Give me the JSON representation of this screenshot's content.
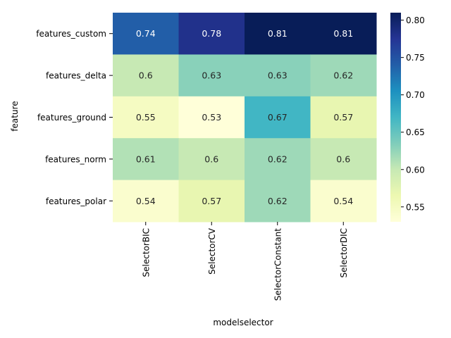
{
  "chart_data": {
    "type": "heatmap",
    "title": "",
    "xlabel": "modelselector",
    "ylabel": "feature",
    "columns": [
      "SelectorBIC",
      "SelectorCV",
      "SelectorConstant",
      "SelectorDIC"
    ],
    "rows": [
      "features_custom",
      "features_delta",
      "features_ground",
      "features_norm",
      "features_polar"
    ],
    "values": [
      [
        0.74,
        0.78,
        0.81,
        0.81
      ],
      [
        0.6,
        0.63,
        0.63,
        0.62
      ],
      [
        0.55,
        0.53,
        0.67,
        0.57
      ],
      [
        0.61,
        0.6,
        0.62,
        0.6
      ],
      [
        0.54,
        0.57,
        0.62,
        0.54
      ]
    ],
    "colormap": "YlGnBu",
    "colormap_stops": [
      "#ffffd9",
      "#edf8b1",
      "#c7e9b4",
      "#7fcdbb",
      "#41b6c4",
      "#1d91c0",
      "#225ea8",
      "#253494",
      "#081d58"
    ],
    "vmin": 0.53,
    "vmax": 0.81,
    "colorbar_ticks": [
      0.55,
      0.6,
      0.65,
      0.7,
      0.75,
      0.8
    ],
    "colorbar_tick_labels": [
      "0.55",
      "0.60",
      "0.65",
      "0.70",
      "0.75",
      "0.80"
    ],
    "annotations": "cell values shown",
    "grid": false,
    "legend": "colorbar right"
  }
}
